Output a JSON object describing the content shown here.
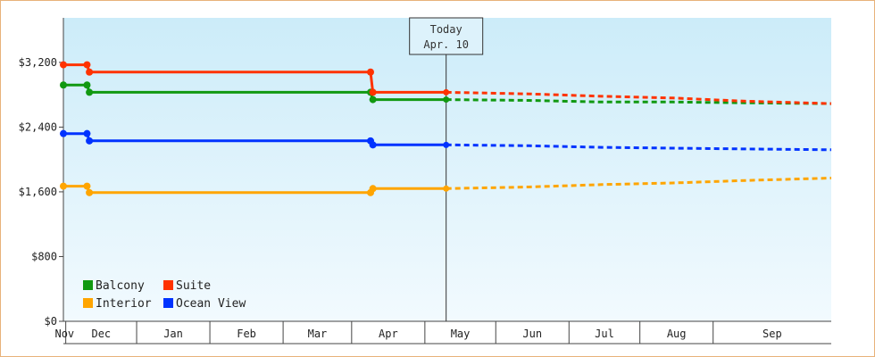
{
  "chart_data": {
    "type": "line",
    "title": "",
    "xlabel": "",
    "ylabel": "",
    "y_ticks": [
      "$0",
      "$800",
      "$1,600",
      "$2,400",
      "$3,200"
    ],
    "y_tick_values": [
      0,
      800,
      1600,
      2400,
      3200
    ],
    "ylim": [
      0,
      3750
    ],
    "x_months": [
      "Nov",
      "Dec",
      "Jan",
      "Feb",
      "Mar",
      "Apr",
      "May",
      "Jun",
      "Jul",
      "Aug",
      "Sep"
    ],
    "x_range": [
      "2023-10-31",
      "2024-09-20"
    ],
    "today": {
      "title": "Today",
      "date_label": "Apr. 10",
      "date": "2024-04-10"
    },
    "legend": {
      "placement": "bottom-left"
    },
    "colors": {
      "Balcony": "#119911",
      "Suite": "#ff3300",
      "Interior": "#ffa500",
      "Ocean View": "#0033ff"
    },
    "series": [
      {
        "name": "Balcony",
        "color": "#119911",
        "history": [
          [
            "2023-10-31",
            2920
          ],
          [
            "2023-11-10",
            2920
          ],
          [
            "2023-11-11",
            2830
          ],
          [
            "2024-03-09",
            2830
          ],
          [
            "2024-03-10",
            2740
          ],
          [
            "2024-04-10",
            2740
          ]
        ],
        "forecast": [
          [
            "2024-04-10",
            2740
          ],
          [
            "2024-05-15",
            2730
          ],
          [
            "2024-06-15",
            2710
          ],
          [
            "2024-07-15",
            2710
          ],
          [
            "2024-08-15",
            2700
          ],
          [
            "2024-09-20",
            2690
          ]
        ]
      },
      {
        "name": "Suite",
        "color": "#ff3300",
        "history": [
          [
            "2023-10-31",
            3170
          ],
          [
            "2023-11-10",
            3170
          ],
          [
            "2023-11-11",
            3080
          ],
          [
            "2024-03-09",
            3080
          ],
          [
            "2024-03-10",
            2830
          ],
          [
            "2024-04-10",
            2830
          ]
        ],
        "forecast": [
          [
            "2024-04-10",
            2830
          ],
          [
            "2024-05-15",
            2810
          ],
          [
            "2024-06-15",
            2780
          ],
          [
            "2024-07-15",
            2760
          ],
          [
            "2024-08-15",
            2720
          ],
          [
            "2024-09-20",
            2690
          ]
        ]
      },
      {
        "name": "Interior",
        "color": "#ffa500",
        "history": [
          [
            "2023-10-31",
            1670
          ],
          [
            "2023-11-10",
            1670
          ],
          [
            "2023-11-11",
            1590
          ],
          [
            "2024-03-09",
            1590
          ],
          [
            "2024-03-10",
            1640
          ],
          [
            "2024-04-10",
            1640
          ]
        ],
        "forecast": [
          [
            "2024-04-10",
            1640
          ],
          [
            "2024-05-15",
            1660
          ],
          [
            "2024-06-15",
            1690
          ],
          [
            "2024-07-15",
            1710
          ],
          [
            "2024-08-15",
            1740
          ],
          [
            "2024-09-20",
            1770
          ]
        ]
      },
      {
        "name": "Ocean View",
        "color": "#0033ff",
        "history": [
          [
            "2023-10-31",
            2320
          ],
          [
            "2023-11-10",
            2320
          ],
          [
            "2023-11-11",
            2230
          ],
          [
            "2024-03-09",
            2230
          ],
          [
            "2024-03-10",
            2180
          ],
          [
            "2024-04-10",
            2180
          ]
        ],
        "forecast": [
          [
            "2024-04-10",
            2180
          ],
          [
            "2024-05-15",
            2170
          ],
          [
            "2024-06-15",
            2150
          ],
          [
            "2024-07-15",
            2140
          ],
          [
            "2024-08-15",
            2130
          ],
          [
            "2024-09-20",
            2120
          ]
        ]
      }
    ]
  }
}
